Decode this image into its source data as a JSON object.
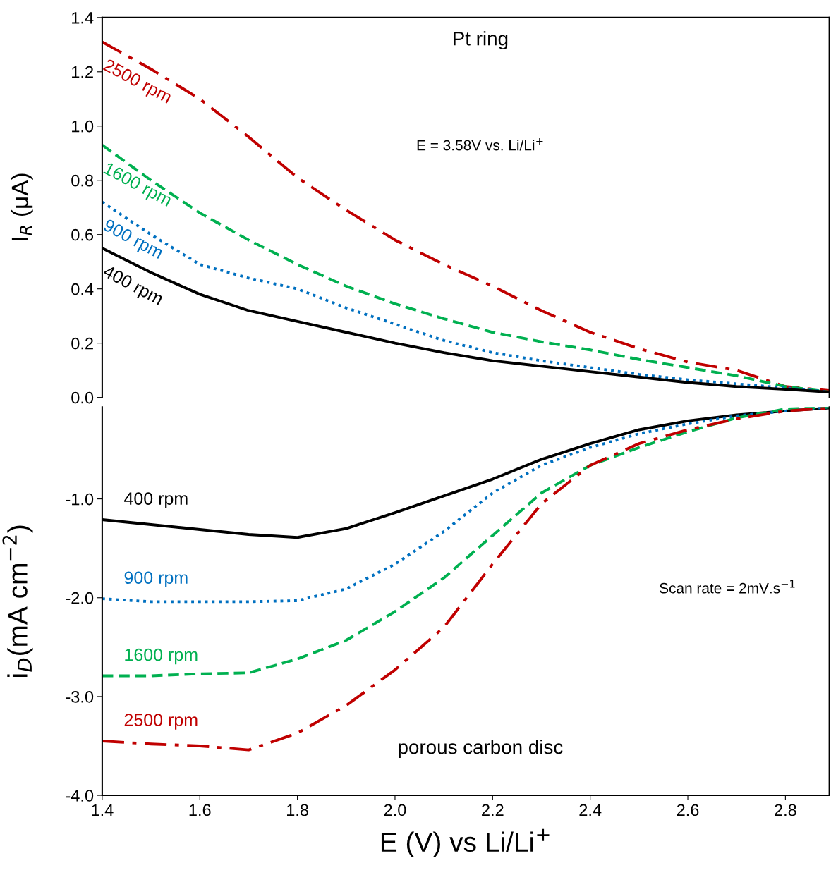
{
  "chart_data": [
    {
      "type": "line",
      "xlim": [
        1.4,
        2.89
      ],
      "ylim": [
        0.0,
        1.4
      ],
      "yticks": [
        {
          "value": 0,
          "label": "0.0"
        },
        0.2,
        0.4,
        0.6,
        0.8,
        {
          "value": 1,
          "label": "1.0"
        },
        1.2,
        1.4
      ],
      "ylabel": "I$_{R}$ (μA)",
      "tick_labels": "y",
      "grid": false,
      "legend": false,
      "x": [
        1.4,
        1.5,
        1.6,
        1.7,
        1.8,
        1.9,
        2.0,
        2.1,
        2.2,
        2.3,
        2.4,
        2.5,
        2.6,
        2.7,
        2.8,
        2.89
      ],
      "series": [
        {
          "name": "2500 rpm",
          "color": "#c00000",
          "line_style": "dashdot",
          "values": [
            1.31,
            1.21,
            1.1,
            0.96,
            0.81,
            0.69,
            0.58,
            0.49,
            0.41,
            0.32,
            0.24,
            0.18,
            0.13,
            0.1,
            0.04,
            0.025
          ]
        },
        {
          "name": "1600 rpm",
          "color": "#00b050",
          "line_style": "dashed",
          "values": [
            0.93,
            0.8,
            0.68,
            0.58,
            0.49,
            0.41,
            0.345,
            0.29,
            0.24,
            0.205,
            0.175,
            0.14,
            0.11,
            0.08,
            0.04,
            0.02
          ]
        },
        {
          "name": "900 rpm",
          "color": "#0070c0",
          "line_style": "dotted",
          "values": [
            0.72,
            0.6,
            0.49,
            0.44,
            0.4,
            0.33,
            0.27,
            0.21,
            0.165,
            0.135,
            0.11,
            0.085,
            0.065,
            0.05,
            0.035,
            0.02
          ]
        },
        {
          "name": "400 rpm",
          "color": "#000000",
          "line_style": "solid",
          "values": [
            0.55,
            0.46,
            0.38,
            0.32,
            0.28,
            0.24,
            0.2,
            0.165,
            0.135,
            0.115,
            0.095,
            0.075,
            0.055,
            0.04,
            0.03,
            0.02
          ]
        }
      ],
      "annotations": [
        "Pt ring",
        "E = 3.58V vs. Li/Li$^{+}$"
      ]
    },
    {
      "type": "line",
      "xlim": [
        1.4,
        2.89
      ],
      "xticks": [
        1.4,
        1.6,
        1.8,
        {
          "value": 2,
          "label": "2.0"
        },
        2.2,
        2.4,
        2.6,
        2.8
      ],
      "ylim": [
        -4.0,
        -0.07
      ],
      "yticks": [
        {
          "value": -4,
          "label": "-4.0"
        },
        {
          "value": -3,
          "label": "-3.0"
        },
        {
          "value": -2,
          "label": "-2.0"
        },
        {
          "value": -1,
          "label": "-1.0"
        }
      ],
      "xlabel": "E (V) vs Li/Li$^{+}$",
      "ylabel": "i$_{D}$(mA cm$^{−2}$)",
      "grid": false,
      "legend": false,
      "x": [
        1.4,
        1.5,
        1.6,
        1.7,
        1.8,
        1.9,
        2.0,
        2.1,
        2.2,
        2.3,
        2.4,
        2.5,
        2.6,
        2.7,
        2.8,
        2.89
      ],
      "series": [
        {
          "name": "400 rpm",
          "color": "#000000",
          "line_style": "solid",
          "values": [
            -1.21,
            -1.26,
            -1.31,
            -1.36,
            -1.39,
            -1.3,
            -1.14,
            -0.97,
            -0.8,
            -0.6,
            -0.44,
            -0.3,
            -0.21,
            -0.15,
            -0.11,
            -0.08
          ]
        },
        {
          "name": "900 rpm",
          "color": "#0070c0",
          "line_style": "dotted",
          "values": [
            -2.01,
            -2.04,
            -2.04,
            -2.04,
            -2.03,
            -1.91,
            -1.66,
            -1.33,
            -0.94,
            -0.66,
            -0.48,
            -0.34,
            -0.24,
            -0.16,
            -0.11,
            -0.07
          ]
        },
        {
          "name": "1600 rpm",
          "color": "#00b050",
          "line_style": "dashed",
          "values": [
            -2.79,
            -2.79,
            -2.77,
            -2.76,
            -2.62,
            -2.43,
            -2.14,
            -1.8,
            -1.37,
            -0.94,
            -0.66,
            -0.48,
            -0.32,
            -0.18,
            -0.09,
            -0.07
          ]
        },
        {
          "name": "2500 rpm",
          "color": "#c00000",
          "line_style": "dashdot",
          "values": [
            -3.45,
            -3.48,
            -3.5,
            -3.54,
            -3.37,
            -3.09,
            -2.73,
            -2.3,
            -1.66,
            -1.05,
            -0.66,
            -0.44,
            -0.3,
            -0.19,
            -0.11,
            -0.08
          ]
        }
      ],
      "annotations": [
        "porous carbon disc",
        "Scan rate = 2mV.s$^{−1}$"
      ]
    }
  ]
}
